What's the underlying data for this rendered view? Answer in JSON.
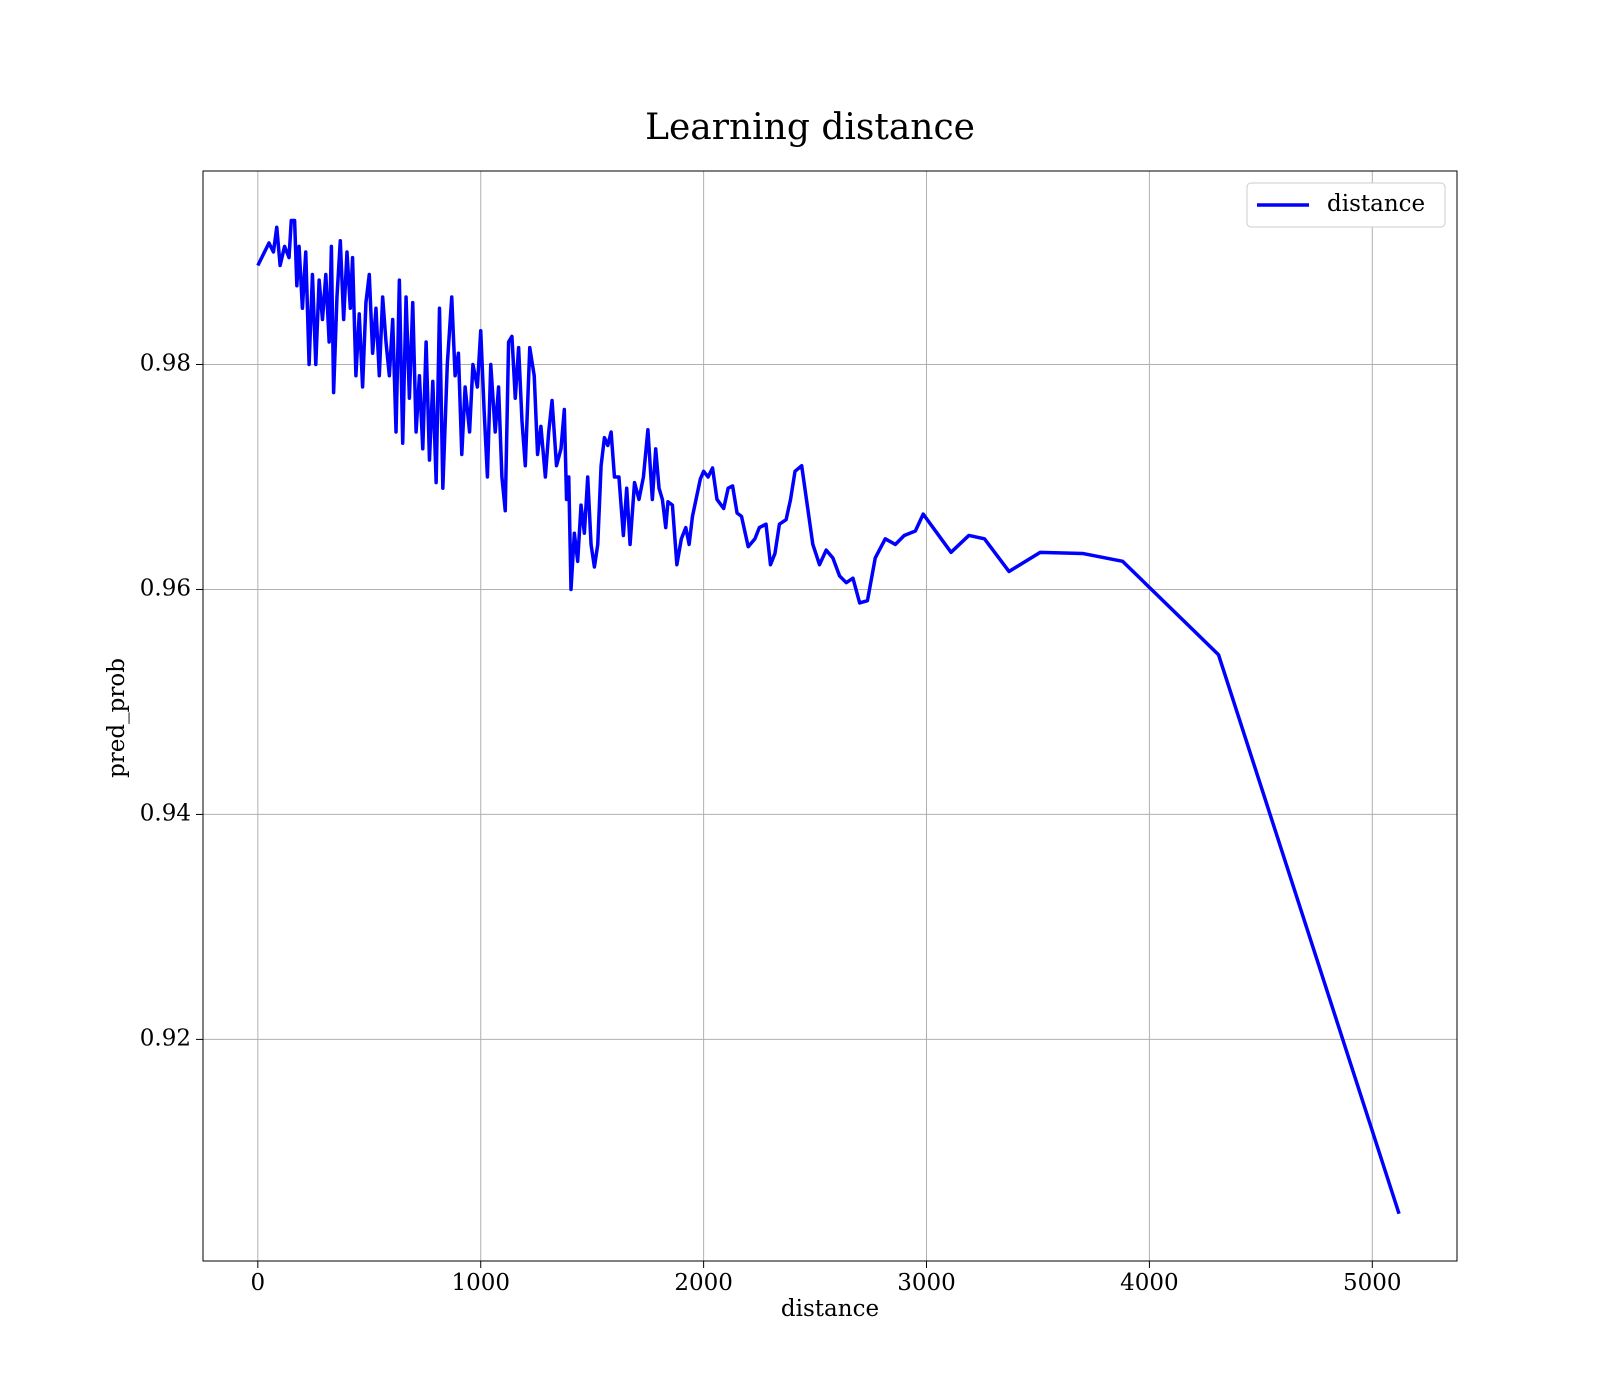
{
  "chart_data": {
    "type": "line",
    "title": "Learning distance",
    "xlabel": "distance",
    "ylabel": "pred_prob",
    "x": [
      0,
      50,
      70,
      85,
      100,
      120,
      140,
      150,
      165,
      175,
      185,
      200,
      215,
      230,
      245,
      260,
      275,
      290,
      305,
      320,
      330,
      340,
      355,
      370,
      385,
      400,
      415,
      425,
      440,
      455,
      470,
      485,
      500,
      515,
      530,
      545,
      560,
      575,
      590,
      605,
      620,
      635,
      650,
      665,
      680,
      695,
      710,
      725,
      740,
      755,
      770,
      785,
      800,
      815,
      830,
      850,
      870,
      885,
      900,
      915,
      930,
      950,
      965,
      985,
      1000,
      1015,
      1030,
      1045,
      1065,
      1080,
      1095,
      1110,
      1125,
      1140,
      1155,
      1170,
      1185,
      1200,
      1220,
      1240,
      1255,
      1270,
      1290,
      1305,
      1320,
      1340,
      1360,
      1375,
      1385,
      1395,
      1405,
      1420,
      1435,
      1450,
      1465,
      1480,
      1495,
      1510,
      1525,
      1540,
      1555,
      1570,
      1585,
      1600,
      1620,
      1640,
      1655,
      1670,
      1690,
      1710,
      1730,
      1750,
      1770,
      1785,
      1800,
      1815,
      1830,
      1840,
      1860,
      1880,
      1900,
      1920,
      1935,
      1950,
      1985,
      2000,
      2020,
      2040,
      2060,
      2090,
      2110,
      2130,
      2150,
      2170,
      2200,
      2230,
      2250,
      2280,
      2300,
      2320,
      2340,
      2370,
      2390,
      2410,
      2440,
      2470,
      2490,
      2520,
      2550,
      2580,
      2610,
      2640,
      2670,
      2700,
      2735,
      2770,
      2815,
      2860,
      2900,
      2950,
      2985,
      3110,
      3190,
      3260,
      3370,
      3510,
      3700,
      3880,
      4310,
      5120
    ],
    "series": [
      {
        "name": "distance",
        "color": "#0000ff",
        "values": [
          0.9888,
          0.9908,
          0.99,
          0.9922,
          0.9888,
          0.9905,
          0.9895,
          0.9928,
          0.9928,
          0.987,
          0.9905,
          0.985,
          0.99,
          0.98,
          0.988,
          0.98,
          0.9875,
          0.984,
          0.988,
          0.982,
          0.9905,
          0.9775,
          0.986,
          0.991,
          0.984,
          0.99,
          0.985,
          0.9895,
          0.979,
          0.9845,
          0.978,
          0.9855,
          0.988,
          0.981,
          0.985,
          0.979,
          0.986,
          0.982,
          0.979,
          0.984,
          0.974,
          0.9875,
          0.973,
          0.986,
          0.977,
          0.9855,
          0.974,
          0.979,
          0.9725,
          0.982,
          0.9715,
          0.9785,
          0.9695,
          0.985,
          0.969,
          0.98,
          0.986,
          0.979,
          0.981,
          0.972,
          0.978,
          0.974,
          0.98,
          0.978,
          0.983,
          0.976,
          0.97,
          0.98,
          0.974,
          0.978,
          0.97,
          0.967,
          0.982,
          0.9825,
          0.977,
          0.9815,
          0.975,
          0.971,
          0.9815,
          0.979,
          0.972,
          0.9745,
          0.97,
          0.974,
          0.9768,
          0.971,
          0.9725,
          0.976,
          0.968,
          0.97,
          0.96,
          0.965,
          0.9625,
          0.9675,
          0.965,
          0.97,
          0.964,
          0.962,
          0.964,
          0.971,
          0.9735,
          0.9728,
          0.974,
          0.97,
          0.97,
          0.9648,
          0.969,
          0.964,
          0.9695,
          0.968,
          0.97,
          0.9742,
          0.968,
          0.9725,
          0.969,
          0.968,
          0.9655,
          0.9678,
          0.9675,
          0.9622,
          0.9645,
          0.9655,
          0.964,
          0.9665,
          0.9698,
          0.9705,
          0.97,
          0.9708,
          0.968,
          0.9672,
          0.969,
          0.9692,
          0.9668,
          0.9665,
          0.9638,
          0.9645,
          0.9655,
          0.9658,
          0.9622,
          0.9632,
          0.9658,
          0.9662,
          0.968,
          0.9705,
          0.971,
          0.9668,
          0.964,
          0.9622,
          0.9635,
          0.9628,
          0.9612,
          0.9606,
          0.961,
          0.9588,
          0.959,
          0.9628,
          0.9645,
          0.964,
          0.9648,
          0.9652,
          0.9667,
          0.9633,
          0.9648,
          0.9645,
          0.9616,
          0.9633,
          0.9632,
          0.9625,
          0.9542,
          0.9045
        ]
      }
    ],
    "xlim": [
      -246,
      5380
    ],
    "xticks": [
      0,
      1000,
      2000,
      3000,
      4000,
      5000
    ],
    "ylim": [
      0.9003,
      0.9972
    ],
    "yticks": [
      0.92,
      0.94,
      0.96,
      0.98
    ],
    "grid": true,
    "legend": "upper right"
  }
}
